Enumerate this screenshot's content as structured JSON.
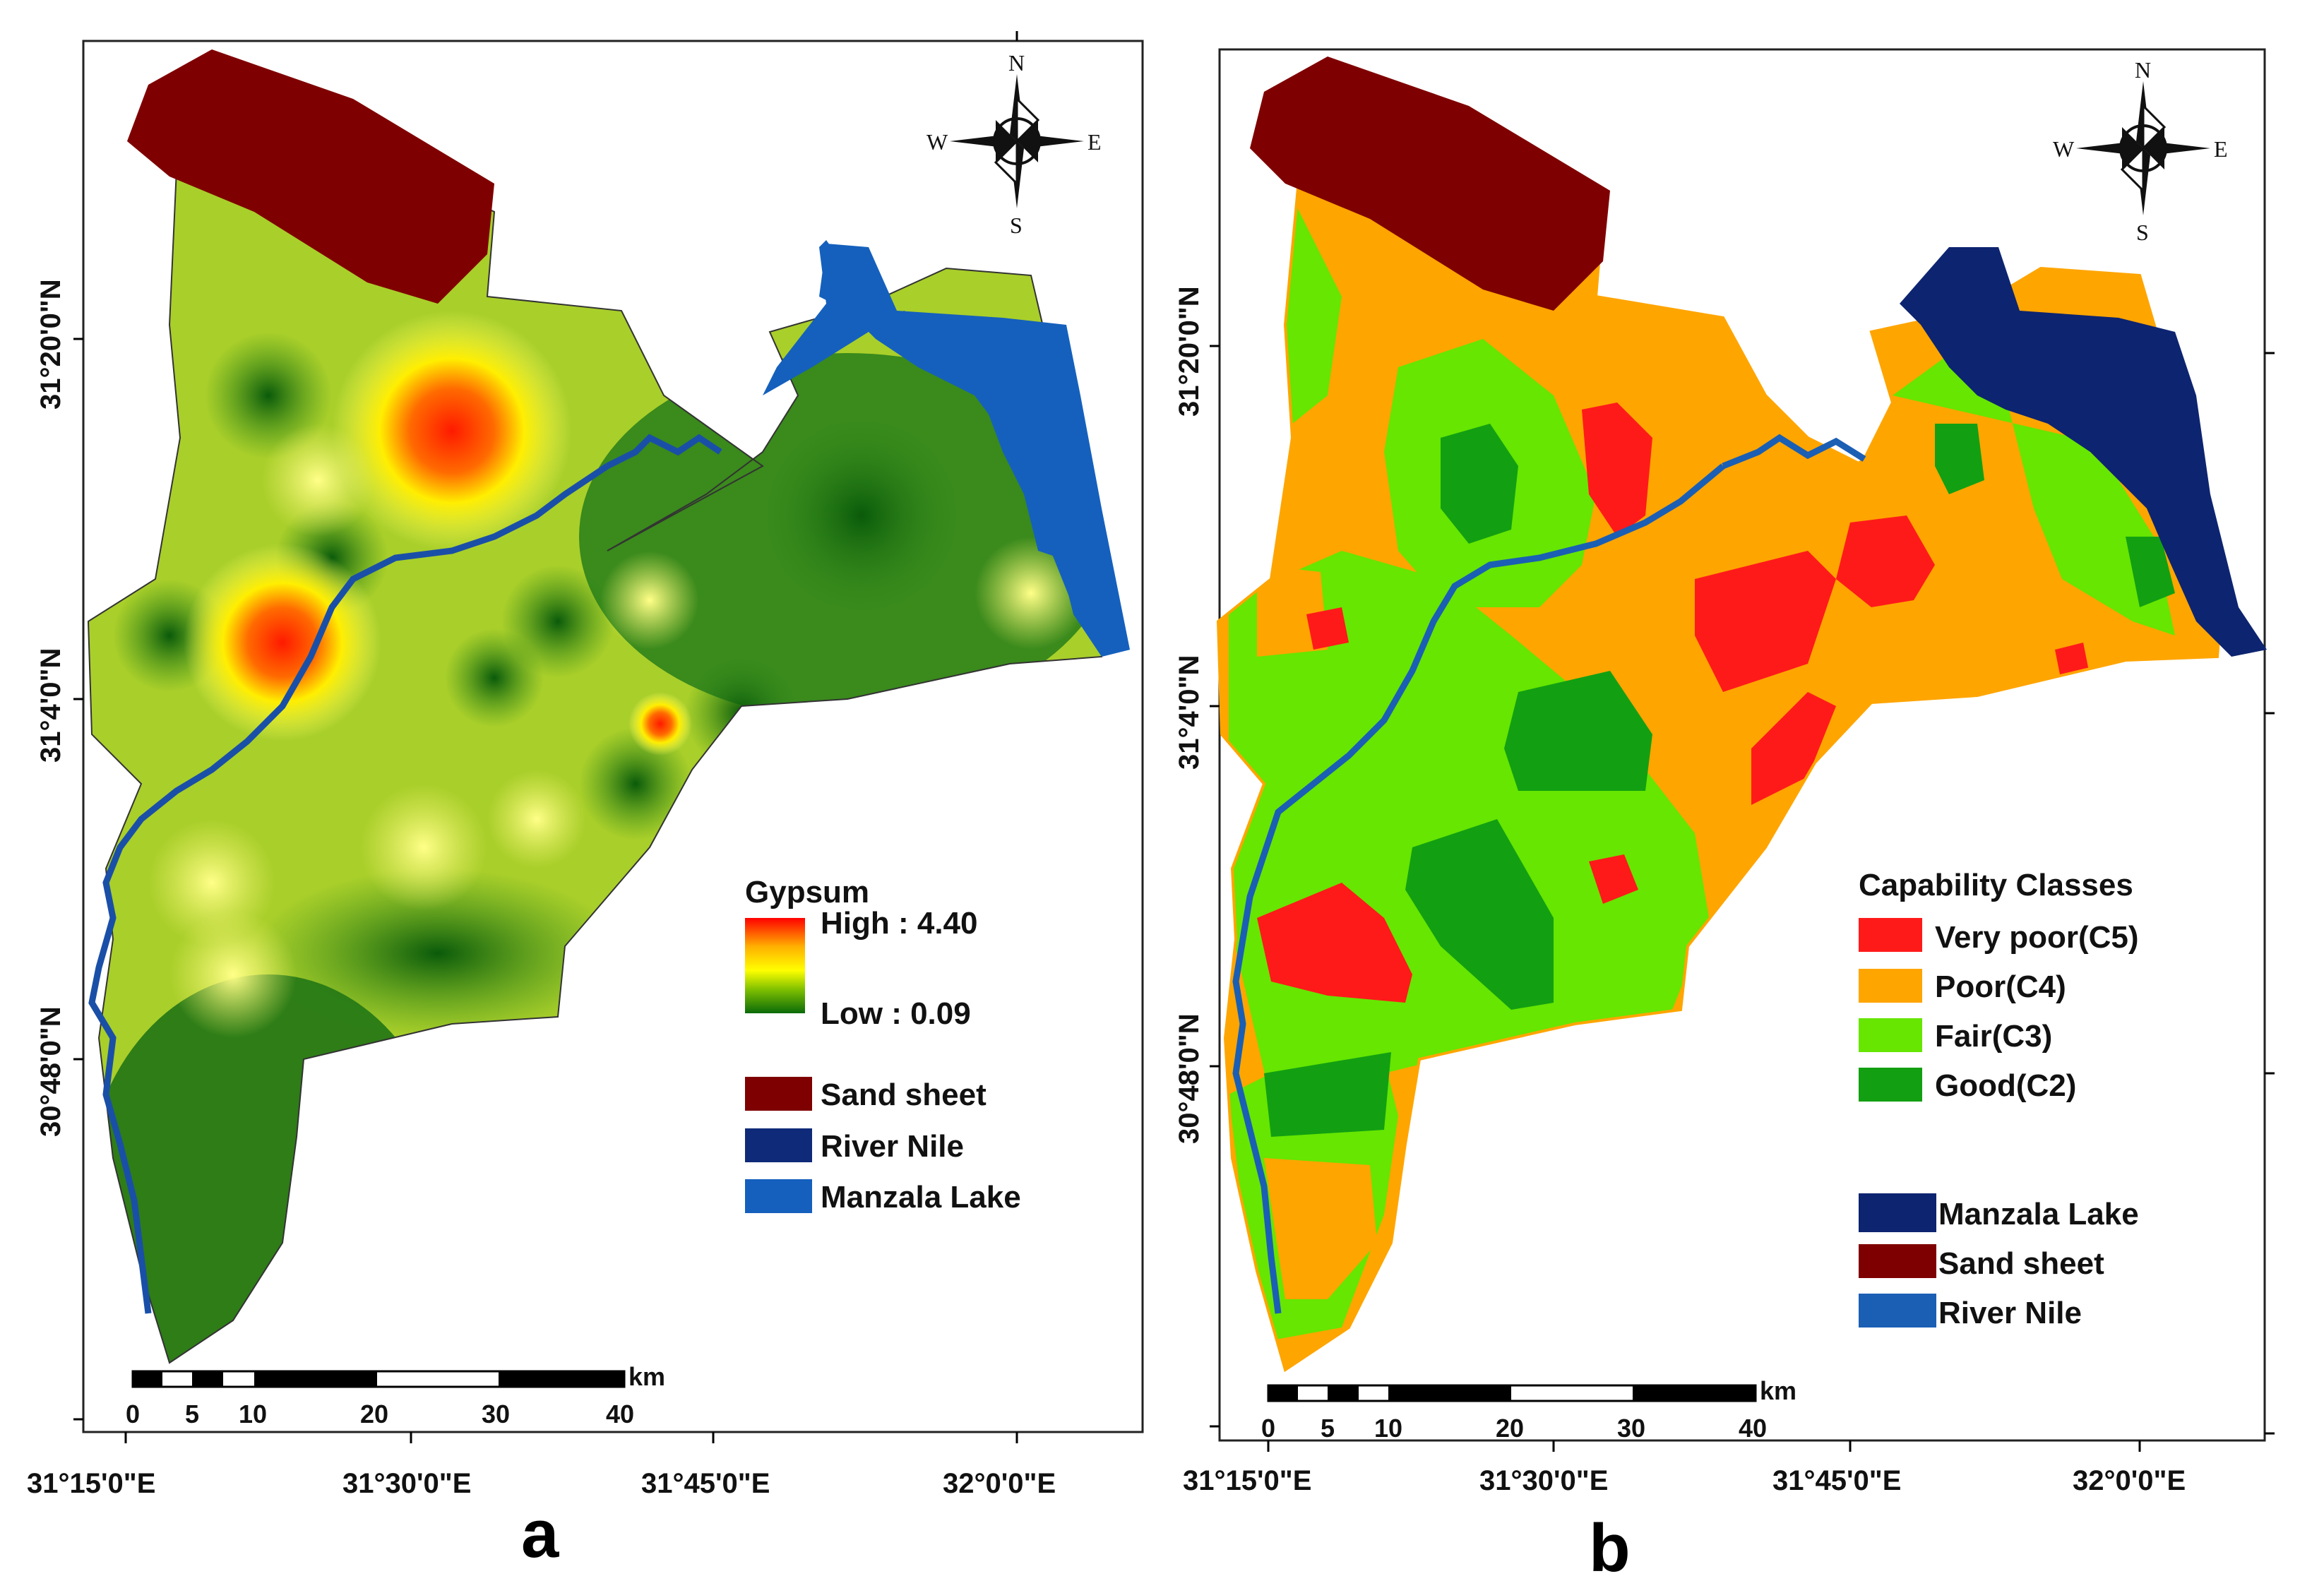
{
  "panels": [
    {
      "label": "a",
      "coords": {
        "lon": [
          "31°15'0\"E",
          "31°30'0\"E",
          "31°45'0\"E",
          "32°0'0\"E"
        ],
        "lat": [
          "31°20'0\"N",
          "31°4'0\"N",
          "30°48'0\"N"
        ]
      },
      "compass": {
        "n": "N",
        "s": "S",
        "e": "E",
        "w": "W"
      },
      "scalebar": {
        "unit": "km",
        "ticks": [
          "0",
          "5",
          "10",
          "20",
          "30",
          "40"
        ]
      },
      "legend": {
        "title": "Gypsum",
        "high": "High : 4.40",
        "low": "Low : 0.09",
        "items": [
          "Sand sheet",
          "River Nile",
          "Manzala Lake"
        ]
      }
    },
    {
      "label": "b",
      "coords": {
        "lon": [
          "31°15'0\"E",
          "31°30'0\"E",
          "31°45'0\"E",
          "32°0'0\"E"
        ],
        "lat": [
          "31°20'0\"N",
          "31°4'0\"N",
          "30°48'0\"N"
        ]
      },
      "compass": {
        "n": "N",
        "s": "S",
        "e": "E",
        "w": "W"
      },
      "scalebar": {
        "unit": "km",
        "ticks": [
          "0",
          "5",
          "10",
          "20",
          "30",
          "40"
        ]
      },
      "legend": {
        "title": "Capability Classes",
        "classes": [
          "Very poor(C5)",
          "Poor(C4)",
          "Fair(C3)",
          "Good(C2)"
        ],
        "items": [
          "Manzala Lake",
          "Sand sheet",
          "River Nile"
        ]
      }
    }
  ],
  "colors": {
    "sand_sheet": "#7f0000",
    "river_nile": "#0f2a78",
    "manzala_lake_a": "#1560bd",
    "manzala_lake_b": "#0d2470",
    "river_line": "#1a5fb4",
    "c5": "#ff1a1a",
    "c4": "#ffa500",
    "c3": "#66e600",
    "c2": "#12a012",
    "gypsum_high": "#ff0000",
    "gypsum_mid": "#ffff00",
    "gypsum_low": "#0a6a0a"
  }
}
